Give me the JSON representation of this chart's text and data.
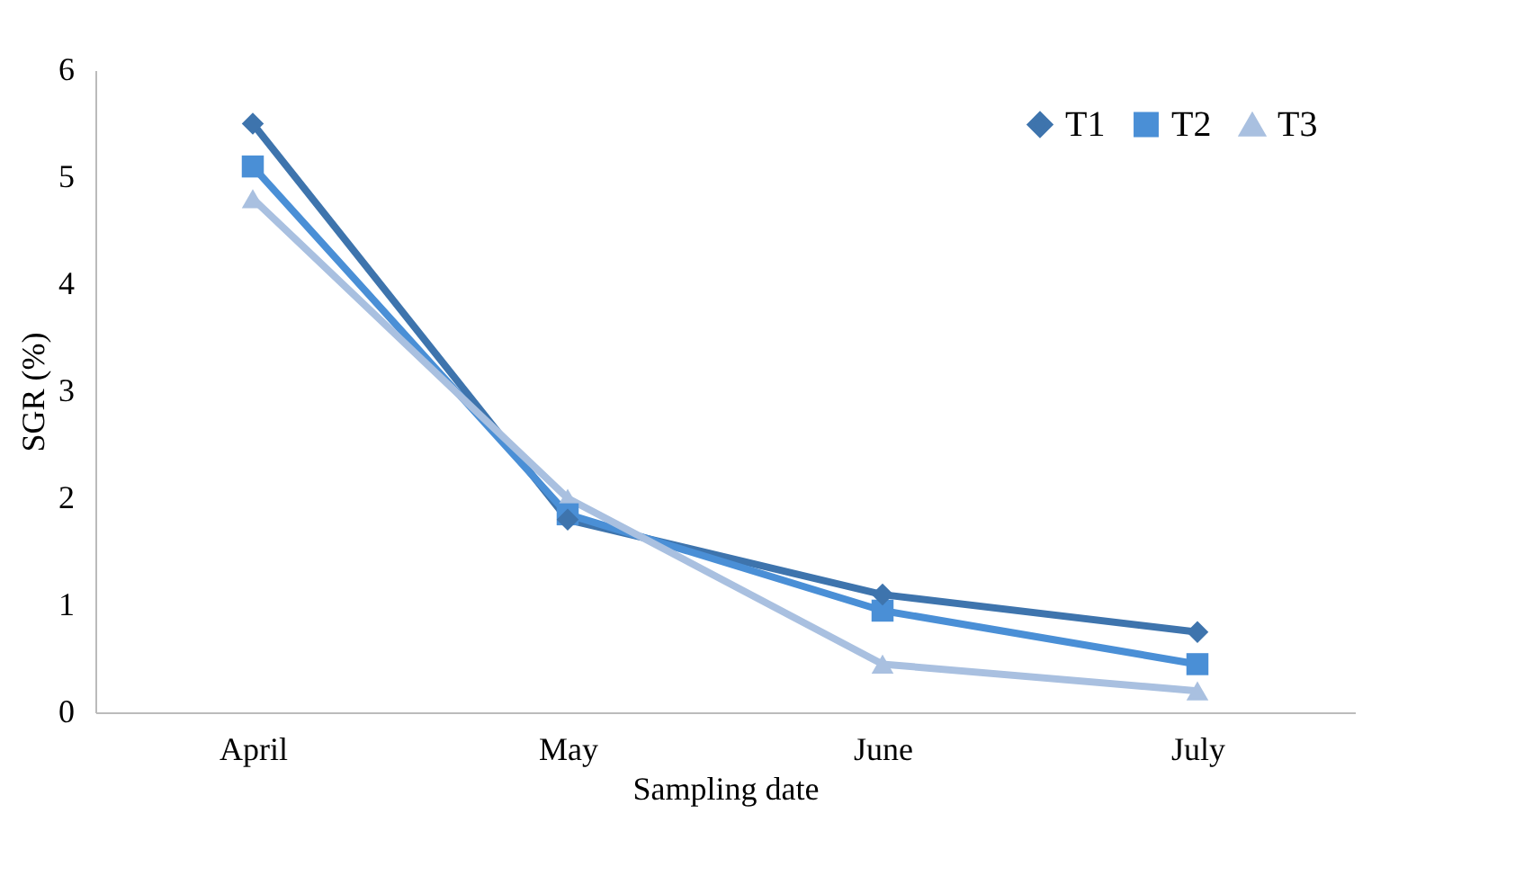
{
  "chart_data": {
    "type": "line",
    "xlabel": "Sampling date",
    "ylabel": "SGR (%)",
    "categories": [
      "April",
      "May",
      "June",
      "July"
    ],
    "series": [
      {
        "name": "T1",
        "color": "#3e74ad",
        "marker": "diamond",
        "values": [
          5.5,
          1.8,
          1.1,
          0.75
        ]
      },
      {
        "name": "T2",
        "color": "#4a8fd6",
        "marker": "square",
        "values": [
          5.1,
          1.85,
          0.95,
          0.45
        ]
      },
      {
        "name": "T3",
        "color": "#a9c0e0",
        "marker": "triangle",
        "values": [
          4.8,
          2.0,
          0.45,
          0.2
        ]
      }
    ],
    "ylim": [
      0,
      6
    ],
    "yticks": [
      0,
      1,
      2,
      3,
      4,
      5,
      6
    ],
    "grid": false,
    "legend": "top right",
    "line_style": "solid"
  }
}
